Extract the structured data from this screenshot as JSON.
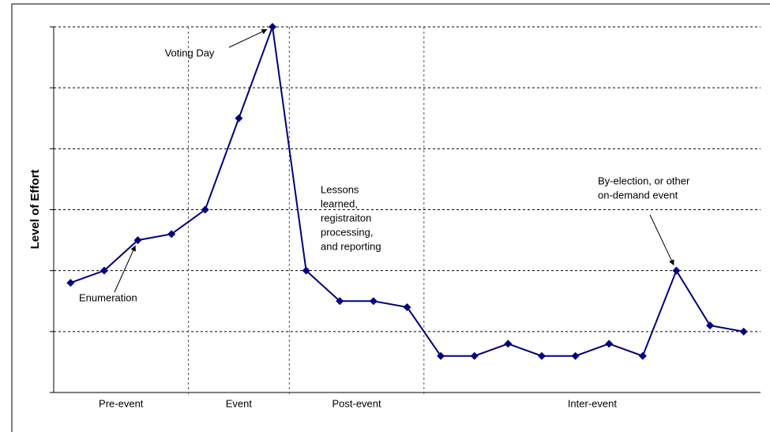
{
  "chart_data": {
    "type": "line",
    "ylabel": "Level of Effort",
    "x": [
      1,
      2,
      3,
      4,
      5,
      6,
      7,
      8,
      9,
      10,
      11,
      12,
      13,
      14,
      15,
      16,
      17,
      18,
      19,
      20,
      21
    ],
    "series": [
      {
        "color": "#000080",
        "values": [
          1.8,
          2.0,
          2.5,
          2.6,
          3.0,
          4.5,
          6.0,
          2.0,
          1.5,
          1.5,
          1.4,
          0.6,
          0.6,
          0.8,
          0.6,
          0.6,
          0.8,
          0.6,
          2.0,
          1.1,
          1.0
        ]
      }
    ],
    "xlim": [
      0.5,
      21.5
    ],
    "ylim": [
      0,
      6
    ],
    "yticks": [
      0,
      1,
      2,
      3,
      4,
      5,
      6
    ],
    "grid": true,
    "phases": [
      {
        "label": "Pre-event",
        "start": 0.5,
        "end": 4.5
      },
      {
        "label": "Event",
        "start": 4.5,
        "end": 7.5
      },
      {
        "label": "Post-event",
        "start": 7.5,
        "end": 11.5
      },
      {
        "label": "Inter-event",
        "start": 11.5,
        "end": 21.5
      }
    ],
    "annotations": [
      {
        "text": [
          "Voting Day"
        ],
        "point": 6
      },
      {
        "text": [
          "Enumeration"
        ],
        "point": 2
      },
      {
        "text": [
          "Lessons",
          "learned,",
          "registraiton",
          "processing,",
          "and reporting"
        ],
        "point": 7
      },
      {
        "text": [
          "By-election, or other",
          "on-demand event"
        ],
        "point": 18
      }
    ]
  }
}
